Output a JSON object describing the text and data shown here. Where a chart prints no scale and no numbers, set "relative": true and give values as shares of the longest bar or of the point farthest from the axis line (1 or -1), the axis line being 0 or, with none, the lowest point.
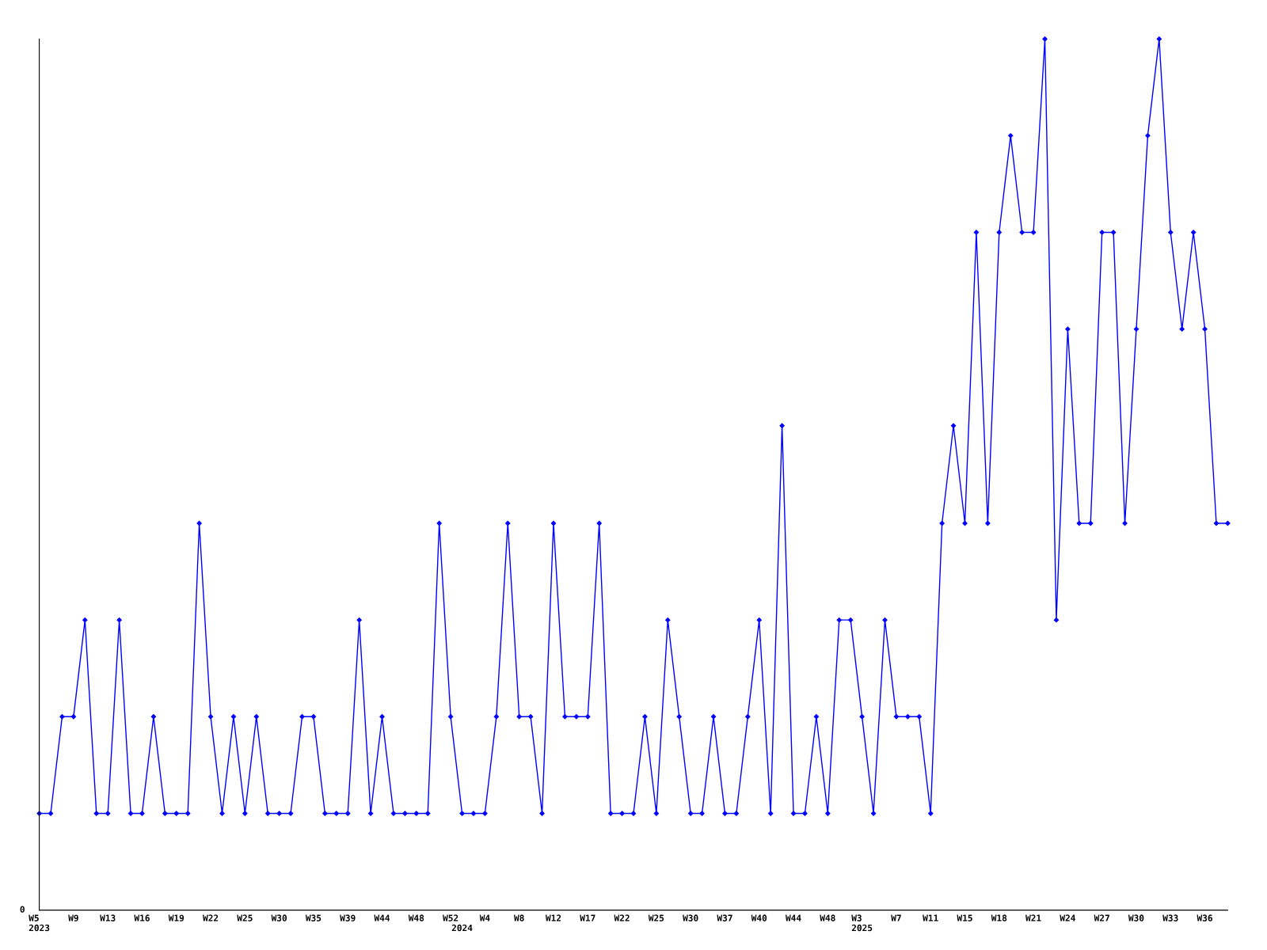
{
  "chart_data": {
    "type": "line",
    "relative": true,
    "color": "#0000ff",
    "marker": "diamond",
    "grid": false,
    "legend": false,
    "categories": [
      "W5\n2023",
      null,
      null,
      "W9",
      null,
      null,
      "W13",
      null,
      null,
      "W16",
      null,
      null,
      "W19",
      null,
      null,
      "W22",
      null,
      null,
      "W25",
      null,
      null,
      "W30",
      null,
      null,
      "W35",
      null,
      null,
      "W39",
      null,
      null,
      "W44",
      null,
      null,
      "W48",
      null,
      null,
      "W52",
      "\n2024",
      null,
      "W4",
      null,
      null,
      "W8",
      null,
      null,
      "W12",
      null,
      null,
      "W17",
      null,
      null,
      "W22",
      null,
      null,
      "W25",
      null,
      null,
      "W30",
      null,
      null,
      "W37",
      null,
      null,
      "W40",
      null,
      null,
      "W44",
      null,
      null,
      "W48",
      null,
      null,
      "W3\n2025",
      null,
      null,
      "W7",
      null,
      null,
      "W11",
      null,
      null,
      "W15",
      null,
      null,
      "W18",
      null,
      null,
      "W21",
      null,
      null,
      "W24",
      null,
      null,
      "W27",
      null,
      null,
      "W30",
      null,
      null,
      "W33",
      null,
      null,
      "W36",
      null,
      null
    ],
    "values": [
      0.111,
      0.111,
      0.222,
      0.222,
      0.333,
      0.111,
      0.111,
      0.333,
      0.111,
      0.111,
      0.222,
      0.111,
      0.111,
      0.111,
      0.444,
      0.222,
      0.111,
      0.222,
      0.111,
      0.222,
      0.111,
      0.111,
      0.111,
      0.222,
      0.222,
      0.111,
      0.111,
      0.111,
      0.333,
      0.111,
      0.222,
      0.111,
      0.111,
      0.111,
      0.111,
      0.444,
      0.222,
      0.111,
      0.111,
      0.111,
      0.222,
      0.444,
      0.222,
      0.222,
      0.111,
      0.444,
      0.222,
      0.222,
      0.222,
      0.444,
      0.111,
      0.111,
      0.111,
      0.222,
      0.111,
      0.333,
      0.222,
      0.111,
      0.111,
      0.222,
      0.111,
      0.111,
      0.222,
      0.333,
      0.111,
      0.556,
      0.111,
      0.111,
      0.222,
      0.111,
      0.333,
      0.333,
      0.222,
      0.111,
      0.333,
      0.222,
      0.222,
      0.222,
      0.111,
      0.444,
      0.556,
      0.444,
      0.778,
      0.444,
      0.778,
      0.889,
      0.778,
      0.778,
      1,
      0.333,
      0.667,
      0.444,
      0.444,
      0.778,
      0.778,
      0.444,
      0.667,
      0.889,
      1,
      0.778,
      0.667,
      0.778,
      0.667,
      0.444,
      0.444
    ],
    "annotations": [
      "0"
    ]
  }
}
